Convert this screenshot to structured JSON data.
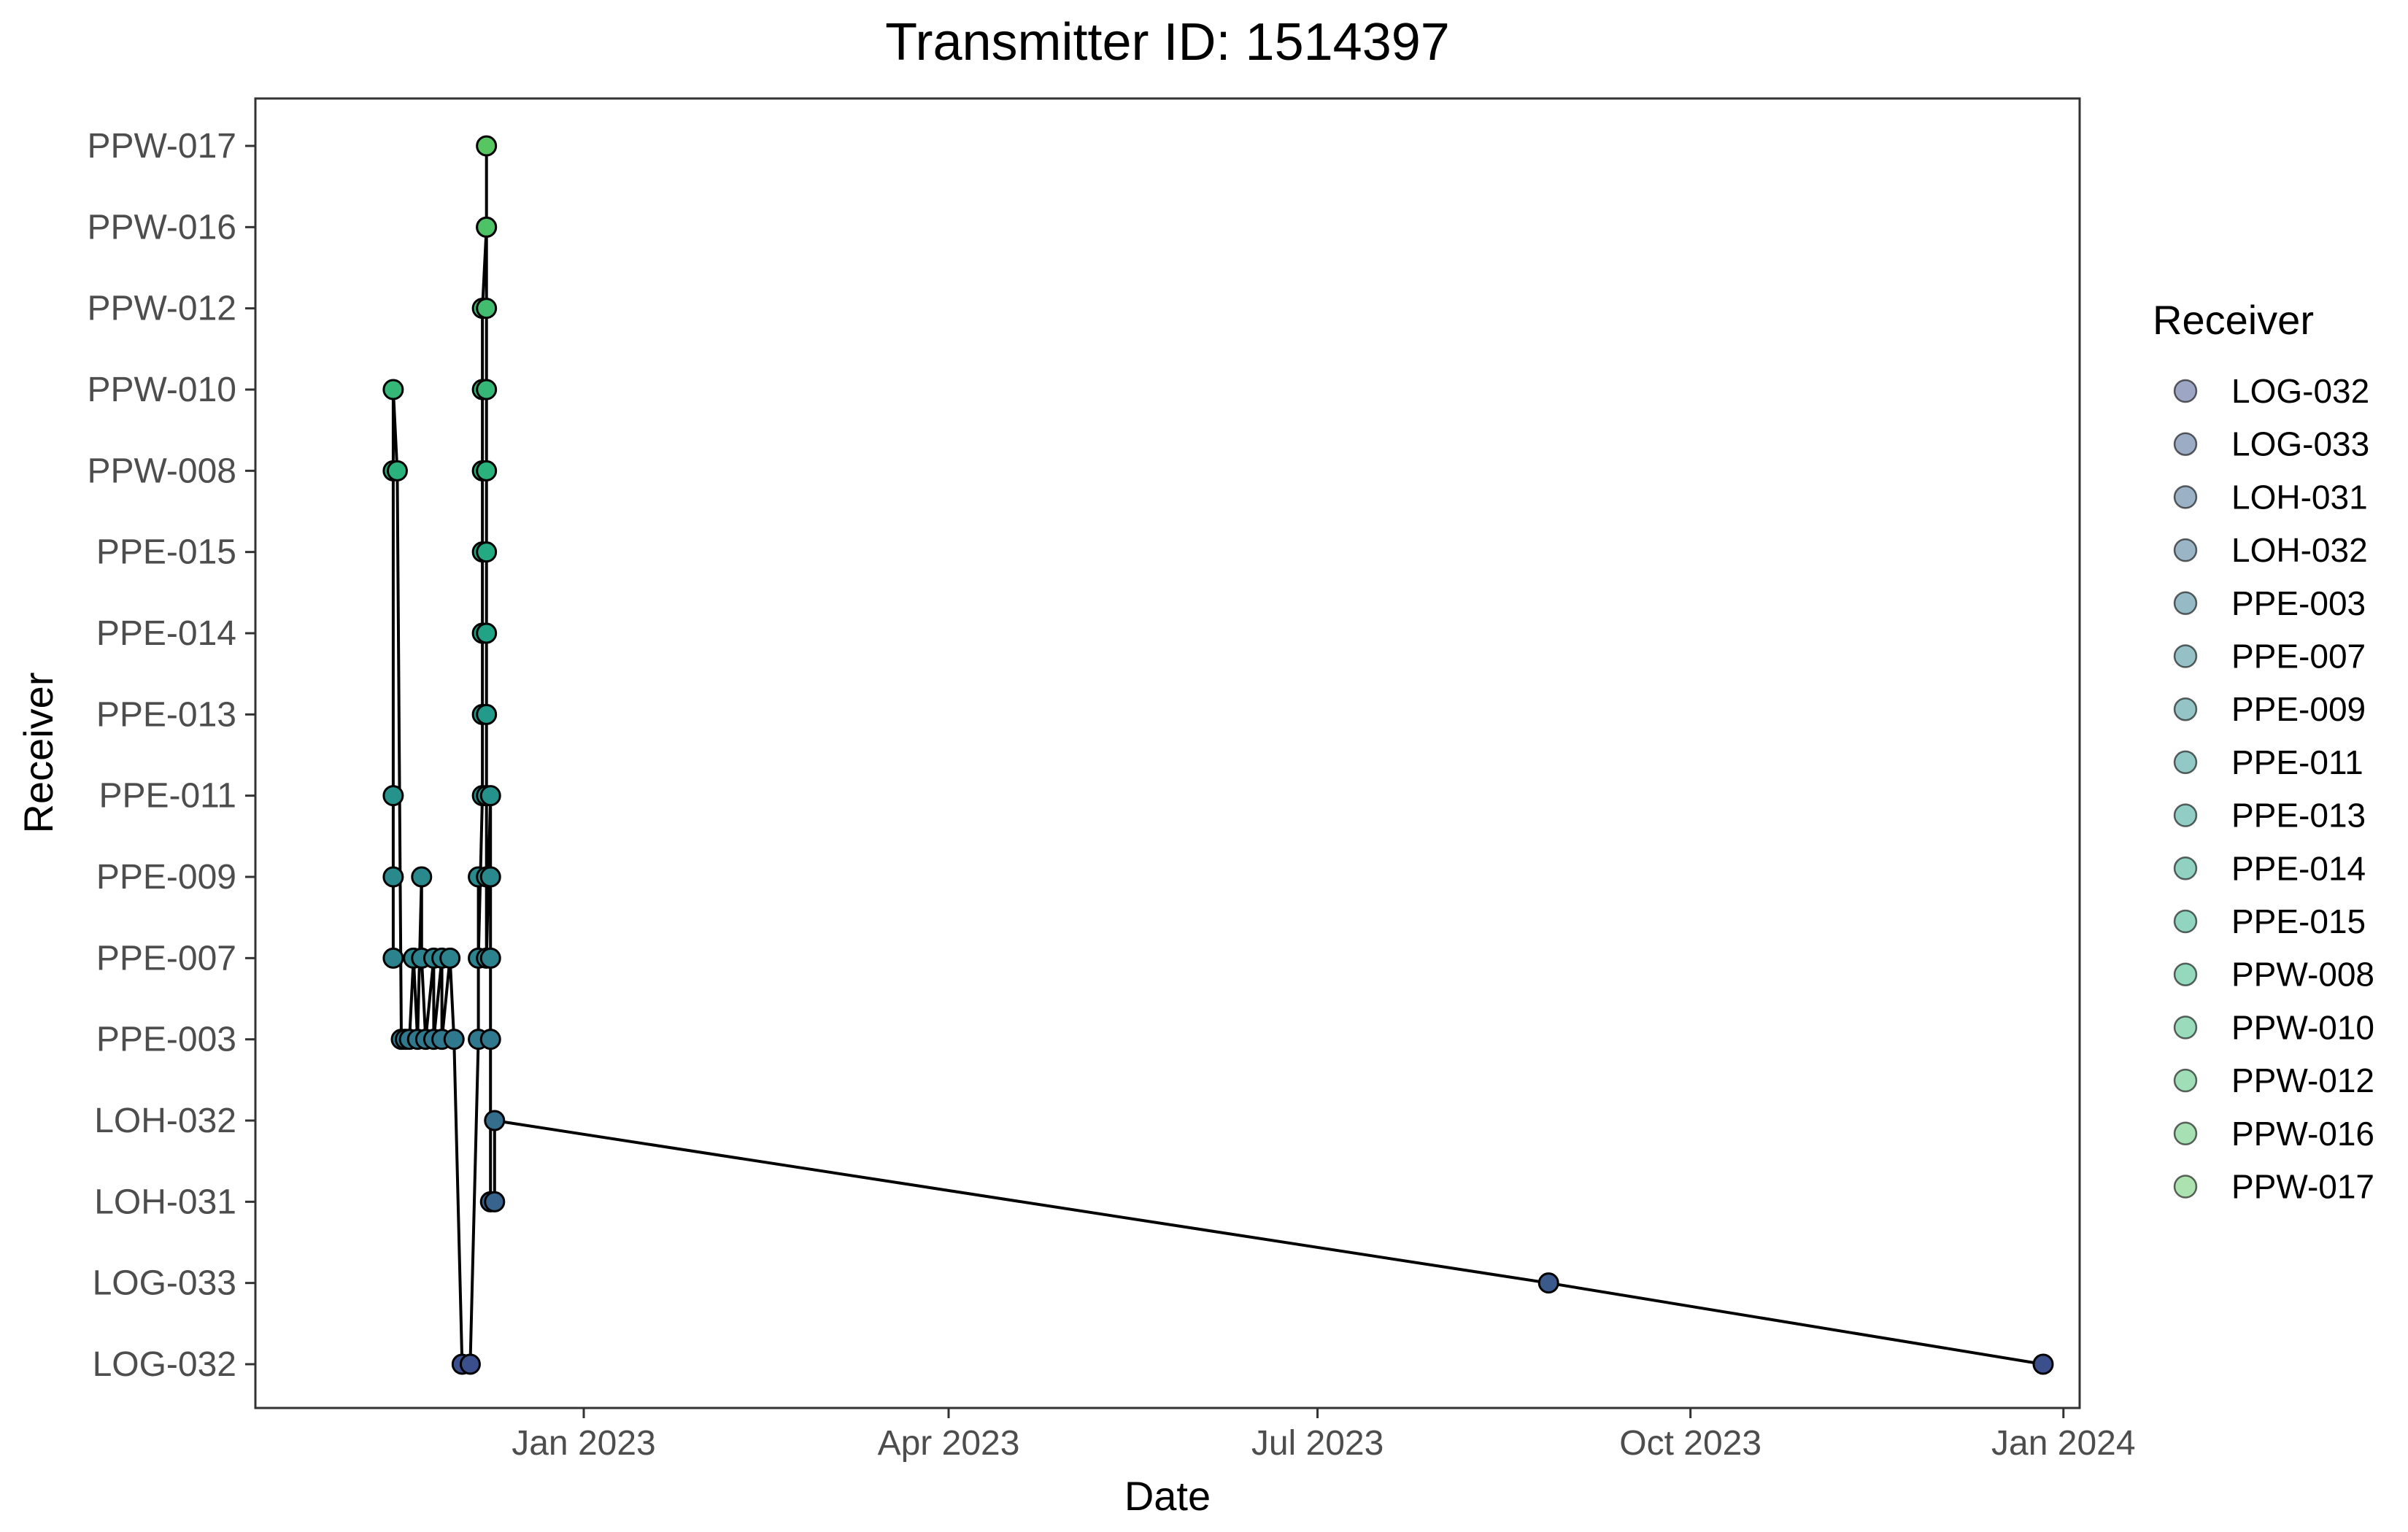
{
  "chart_data": {
    "type": "line",
    "title": "Transmitter ID: 1514397",
    "xlabel": "Date",
    "ylabel": "Receiver",
    "x_axis": {
      "type": "date",
      "range": [
        "2022-10-12",
        "2024-01-05"
      ],
      "ticks": [
        {
          "value": "2023-01-01",
          "label": "Jan 2023"
        },
        {
          "value": "2023-04-01",
          "label": "Apr 2023"
        },
        {
          "value": "2023-07-01",
          "label": "Jul 2023"
        },
        {
          "value": "2023-10-01",
          "label": "Oct 2023"
        },
        {
          "value": "2024-01-01",
          "label": "Jan 2024"
        }
      ]
    },
    "categories": [
      "LOG-032",
      "LOG-033",
      "LOH-031",
      "LOH-032",
      "PPE-003",
      "PPE-007",
      "PPE-009",
      "PPE-011",
      "PPE-013",
      "PPE-014",
      "PPE-015",
      "PPW-008",
      "PPW-010",
      "PPW-012",
      "PPW-016",
      "PPW-017"
    ],
    "colors": {
      "LOG-032": "#3b4f8c",
      "LOG-033": "#3a5a8c",
      "LOH-031": "#38638c",
      "LOH-032": "#356d8d",
      "PPE-003": "#30788d",
      "PPE-007": "#2c838d",
      "PPE-009": "#29898d",
      "PPE-011": "#26928c",
      "PPE-013": "#239b8a",
      "PPE-014": "#21a386",
      "PPE-015": "#23aa82",
      "PPW-008": "#2ab27c",
      "PPW-010": "#35b877",
      "PPW-012": "#42bd6f",
      "PPW-016": "#4dc267",
      "PPW-017": "#57c660"
    },
    "series": [
      {
        "points": [
          {
            "x": "2022-11-15",
            "y": "PPE-007"
          },
          {
            "x": "2022-11-15",
            "y": "PPE-009"
          },
          {
            "x": "2022-11-15",
            "y": "PPE-011"
          },
          {
            "x": "2022-11-15",
            "y": "PPW-008"
          },
          {
            "x": "2022-11-15",
            "y": "PPW-010"
          },
          {
            "x": "2022-11-16",
            "y": "PPW-008"
          },
          {
            "x": "2022-11-17",
            "y": "PPE-003"
          },
          {
            "x": "2022-11-18",
            "y": "PPE-003"
          },
          {
            "x": "2022-11-19",
            "y": "PPE-003"
          },
          {
            "x": "2022-11-20",
            "y": "PPE-007"
          },
          {
            "x": "2022-11-21",
            "y": "PPE-003"
          },
          {
            "x": "2022-11-22",
            "y": "PPE-009"
          },
          {
            "x": "2022-11-22",
            "y": "PPE-007"
          },
          {
            "x": "2022-11-23",
            "y": "PPE-003"
          },
          {
            "x": "2022-11-25",
            "y": "PPE-007"
          },
          {
            "x": "2022-11-25",
            "y": "PPE-003"
          },
          {
            "x": "2022-11-27",
            "y": "PPE-007"
          },
          {
            "x": "2022-11-27",
            "y": "PPE-003"
          },
          {
            "x": "2022-11-29",
            "y": "PPE-007"
          },
          {
            "x": "2022-11-30",
            "y": "PPE-003"
          },
          {
            "x": "2022-12-02",
            "y": "LOG-032"
          },
          {
            "x": "2022-12-04",
            "y": "LOG-032"
          },
          {
            "x": "2022-12-06",
            "y": "PPE-003"
          },
          {
            "x": "2022-12-06",
            "y": "PPE-009"
          },
          {
            "x": "2022-12-06",
            "y": "PPE-007"
          },
          {
            "x": "2022-12-07",
            "y": "PPE-011"
          },
          {
            "x": "2022-12-07",
            "y": "PPE-013"
          },
          {
            "x": "2022-12-07",
            "y": "PPE-014"
          },
          {
            "x": "2022-12-07",
            "y": "PPE-015"
          },
          {
            "x": "2022-12-07",
            "y": "PPW-008"
          },
          {
            "x": "2022-12-07",
            "y": "PPW-010"
          },
          {
            "x": "2022-12-07",
            "y": "PPW-012"
          },
          {
            "x": "2022-12-08",
            "y": "PPW-016"
          },
          {
            "x": "2022-12-08",
            "y": "PPW-017"
          },
          {
            "x": "2022-12-08",
            "y": "PPW-016"
          },
          {
            "x": "2022-12-08",
            "y": "PPW-012"
          },
          {
            "x": "2022-12-08",
            "y": "PPW-010"
          },
          {
            "x": "2022-12-08",
            "y": "PPW-008"
          },
          {
            "x": "2022-12-08",
            "y": "PPE-015"
          },
          {
            "x": "2022-12-08",
            "y": "PPE-014"
          },
          {
            "x": "2022-12-08",
            "y": "PPE-013"
          },
          {
            "x": "2022-12-08",
            "y": "PPE-011"
          },
          {
            "x": "2022-12-08",
            "y": "PPE-009"
          },
          {
            "x": "2022-12-08",
            "y": "PPE-007"
          },
          {
            "x": "2022-12-09",
            "y": "PPE-011"
          },
          {
            "x": "2022-12-09",
            "y": "PPE-009"
          },
          {
            "x": "2022-12-09",
            "y": "PPE-007"
          },
          {
            "x": "2022-12-09",
            "y": "PPE-003"
          },
          {
            "x": "2022-12-09",
            "y": "LOH-031"
          },
          {
            "x": "2022-12-10",
            "y": "LOH-031"
          },
          {
            "x": "2022-12-10",
            "y": "LOH-032"
          },
          {
            "x": "2023-08-27",
            "y": "LOG-033"
          },
          {
            "x": "2023-12-27",
            "y": "LOG-032"
          }
        ]
      }
    ],
    "legend": {
      "title": "Receiver",
      "position": "right",
      "entries": [
        "LOG-032",
        "LOG-033",
        "LOH-031",
        "LOH-032",
        "PPE-003",
        "PPE-007",
        "PPE-009",
        "PPE-011",
        "PPE-013",
        "PPE-014",
        "PPE-015",
        "PPW-008",
        "PPW-010",
        "PPW-012",
        "PPW-016",
        "PPW-017"
      ]
    },
    "grid": false
  }
}
